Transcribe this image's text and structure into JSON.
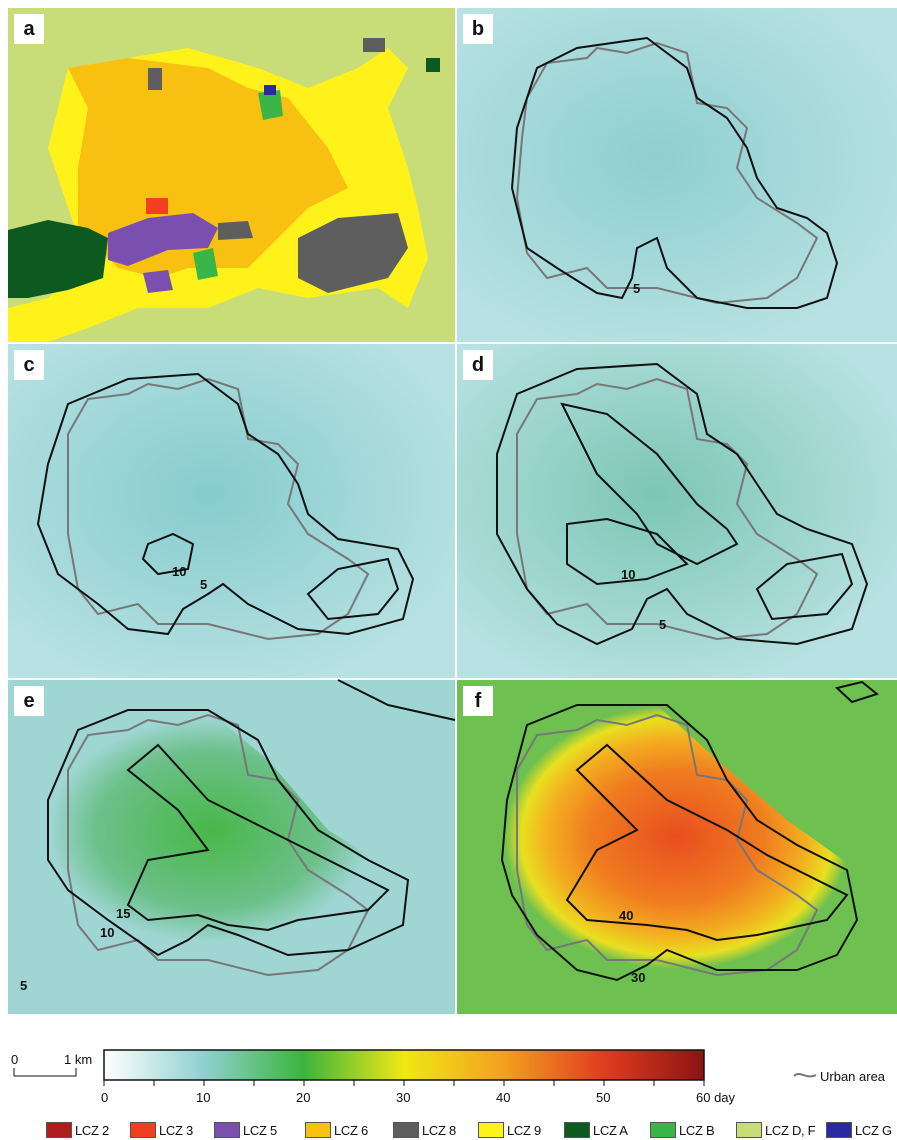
{
  "panels": [
    {
      "id": "a",
      "label": "a"
    },
    {
      "id": "b",
      "label": "b",
      "contours": [
        "5"
      ]
    },
    {
      "id": "c",
      "label": "c",
      "contours": [
        "10",
        "5"
      ]
    },
    {
      "id": "d",
      "label": "d",
      "contours": [
        "10",
        "5"
      ]
    },
    {
      "id": "e",
      "label": "e",
      "contours": [
        "15",
        "10",
        "5"
      ]
    },
    {
      "id": "f",
      "label": "f",
      "contours": [
        "40",
        "30"
      ]
    }
  ],
  "scalebar": {
    "zero": "0",
    "distance": "1 km"
  },
  "colorbar": {
    "ticks": [
      "0",
      "10",
      "20",
      "30",
      "40",
      "50",
      "60 day"
    ],
    "stops": [
      "#ffffff",
      "#8fd0d0",
      "#3cb43c",
      "#f0e814",
      "#f2a020",
      "#e03c20",
      "#8b1414"
    ]
  },
  "urban_legend": "Urban area",
  "lcz_legend": [
    {
      "label": "LCZ 2",
      "color": "#b01c1c"
    },
    {
      "label": "LCZ 3",
      "color": "#f04020"
    },
    {
      "label": "LCZ 5",
      "color": "#7a4fb0"
    },
    {
      "label": "LCZ 6",
      "color": "#f8c010"
    },
    {
      "label": "LCZ 8",
      "color": "#5e5e5e"
    },
    {
      "label": "LCZ 9",
      "color": "#fff21a"
    },
    {
      "label": "LCZ A",
      "color": "#0d5a20"
    },
    {
      "label": "LCZ B",
      "color": "#3ab548"
    },
    {
      "label": "LCZ D, F",
      "color": "#c8dc78"
    },
    {
      "label": "LCZ G",
      "color": "#2a2aa0"
    }
  ]
}
